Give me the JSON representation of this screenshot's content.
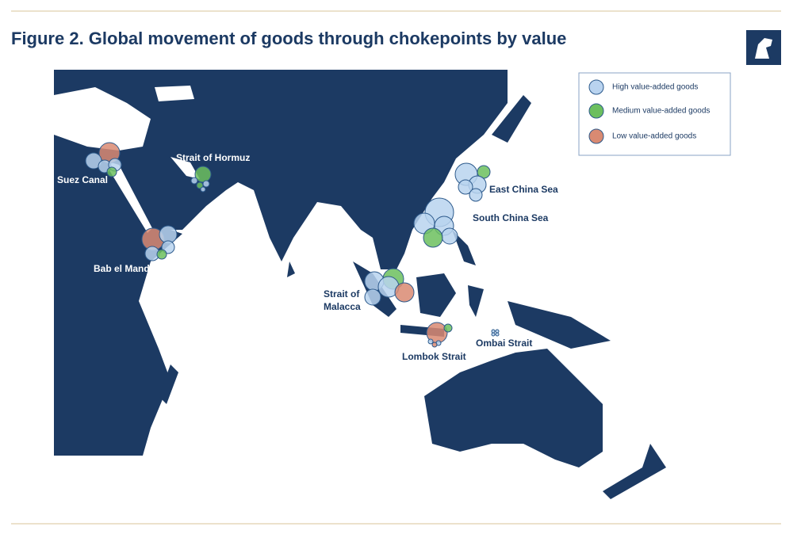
{
  "header": {
    "title": "Figure 2. Global movement of goods through chokepoints by value"
  },
  "legend": {
    "items": [
      {
        "label": "High value-added goods",
        "color": "#b9d3ef"
      },
      {
        "label": "Medium value-added goods",
        "color": "#6cbf5e"
      },
      {
        "label": "Low value-added goods",
        "color": "#d98a72"
      }
    ]
  },
  "labels": [
    {
      "lines": [
        "Suez Canal"
      ]
    },
    {
      "lines": [
        "Strait of Hormuz"
      ]
    },
    {
      "lines": [
        "Bab el Mandeb"
      ]
    },
    {
      "lines": [
        "East China Sea"
      ]
    },
    {
      "lines": [
        "South China Sea"
      ]
    },
    {
      "lines": [
        "Strait of",
        "Malacca"
      ]
    },
    {
      "lines": [
        "Lombok Strait"
      ]
    },
    {
      "lines": [
        "Ombai Strait"
      ]
    }
  ]
}
